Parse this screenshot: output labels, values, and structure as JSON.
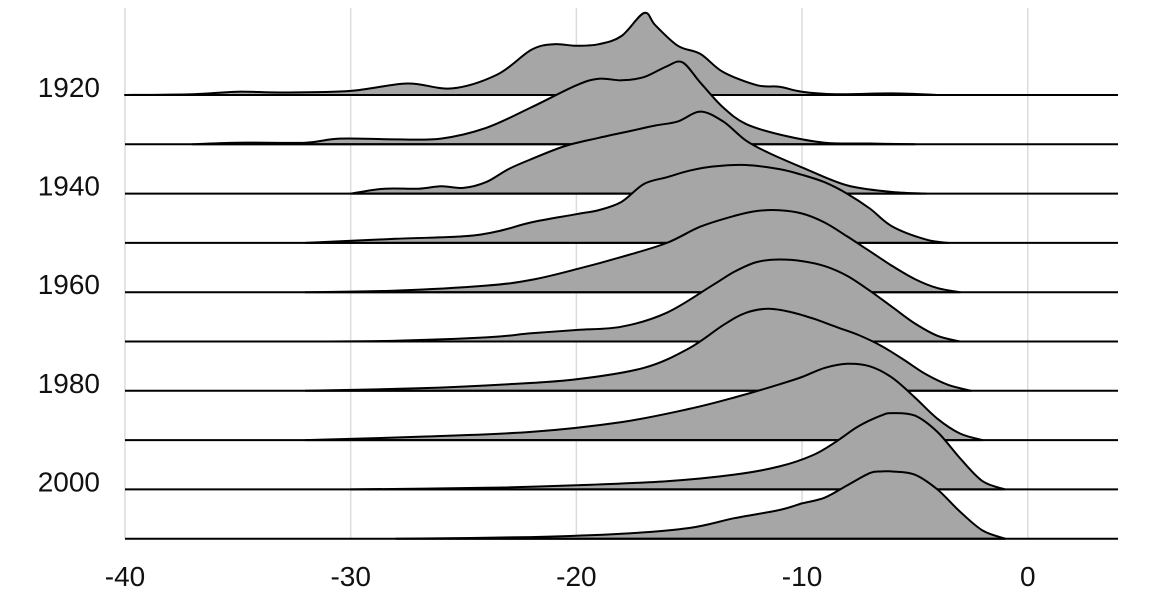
{
  "chart_data": {
    "type": "ridgeline",
    "title": "",
    "xlabel": "",
    "ylabel": "",
    "xlim": [
      -40,
      4
    ],
    "grid": true,
    "legend": "none",
    "colors": {
      "fill": "#a6a6a6",
      "stroke": "#000000",
      "grid": "#dcdcdc"
    },
    "x_ticks": [
      -40,
      -30,
      -20,
      -10,
      0
    ],
    "x_tick_labels": [
      "-40",
      "-30",
      "-20",
      "-10",
      "0"
    ],
    "y_tick_labels": [
      {
        "label": "1920",
        "ridge": 0
      },
      {
        "label": "1940",
        "ridge": 2
      },
      {
        "label": "1960",
        "ridge": 4
      },
      {
        "label": "1980",
        "ridge": 6
      },
      {
        "label": "2000",
        "ridge": 8
      }
    ],
    "series": [
      {
        "x": [
          -40,
          -37,
          -35,
          -33,
          -30,
          -27.5,
          -25.5,
          -23.5,
          -22,
          -21,
          -20,
          -19,
          -18,
          -17,
          -16.5,
          -15.5,
          -14.5,
          -13.5,
          -12,
          -11,
          -10,
          -8.5,
          -6,
          -4
        ],
        "density": [
          0,
          0.01,
          0.04,
          0.03,
          0.05,
          0.14,
          0.08,
          0.25,
          0.55,
          0.62,
          0.6,
          0.62,
          0.72,
          1.0,
          0.85,
          0.6,
          0.5,
          0.28,
          0.12,
          0.1,
          0.04,
          0.01,
          0.02,
          0
        ]
      },
      {
        "x": [
          -37,
          -35,
          -32,
          -30.5,
          -28,
          -26,
          -24,
          -22,
          -20,
          -19,
          -18,
          -17,
          -16,
          -15.3,
          -14.5,
          -13.5,
          -12.5,
          -11,
          -9,
          -7,
          -5
        ],
        "density": [
          0,
          0.02,
          0.02,
          0.07,
          0.06,
          0.07,
          0.2,
          0.45,
          0.72,
          0.8,
          0.78,
          0.82,
          0.95,
          1.0,
          0.75,
          0.45,
          0.25,
          0.12,
          0.02,
          0.01,
          0
        ]
      },
      {
        "x": [
          -30,
          -28.5,
          -27,
          -26,
          -25,
          -24,
          -23,
          -22,
          -20.5,
          -19,
          -17.5,
          -16.5,
          -15.5,
          -14.5,
          -13.5,
          -12.5,
          -11.5,
          -10,
          -8,
          -6,
          -4.5
        ],
        "density": [
          0,
          0.06,
          0.06,
          0.09,
          0.07,
          0.14,
          0.3,
          0.42,
          0.58,
          0.68,
          0.77,
          0.83,
          0.88,
          1.0,
          0.88,
          0.65,
          0.5,
          0.32,
          0.1,
          0.02,
          0
        ]
      },
      {
        "x": [
          -32,
          -28,
          -25,
          -23.5,
          -22,
          -20,
          -19,
          -18,
          -17,
          -16,
          -15,
          -14,
          -12.5,
          -11,
          -10,
          -9,
          -8,
          -7,
          -6,
          -4.5,
          -3.5
        ],
        "density": [
          0,
          0.05,
          0.08,
          0.14,
          0.25,
          0.35,
          0.4,
          0.5,
          0.72,
          0.8,
          0.88,
          0.93,
          0.95,
          0.9,
          0.83,
          0.74,
          0.6,
          0.42,
          0.2,
          0.04,
          0
        ]
      },
      {
        "x": [
          -32,
          -28,
          -24,
          -22,
          -20,
          -18,
          -16,
          -14.5,
          -13,
          -12,
          -11,
          -10,
          -9,
          -8,
          -7,
          -6,
          -5,
          -4,
          -3
        ],
        "density": [
          0,
          0.02,
          0.08,
          0.15,
          0.28,
          0.43,
          0.6,
          0.8,
          0.93,
          0.99,
          1.0,
          0.96,
          0.85,
          0.68,
          0.5,
          0.32,
          0.16,
          0.05,
          0
        ]
      },
      {
        "x": [
          -32,
          -28,
          -24,
          -22,
          -20,
          -18,
          -16,
          -14,
          -13,
          -12,
          -11,
          -10,
          -9,
          -8,
          -7,
          -6,
          -5,
          -4,
          -3
        ],
        "density": [
          0,
          0.01,
          0.05,
          0.1,
          0.14,
          0.18,
          0.35,
          0.68,
          0.85,
          0.97,
          1.0,
          0.98,
          0.92,
          0.8,
          0.62,
          0.42,
          0.22,
          0.07,
          0
        ]
      },
      {
        "x": [
          -32,
          -27,
          -23,
          -20,
          -17,
          -15,
          -13.5,
          -12.5,
          -11.5,
          -10.5,
          -9.5,
          -8.5,
          -7.5,
          -6.5,
          -5.5,
          -4.5,
          -3.5,
          -2.5
        ],
        "density": [
          0,
          0.03,
          0.08,
          0.14,
          0.28,
          0.52,
          0.8,
          0.95,
          1.0,
          0.96,
          0.88,
          0.78,
          0.68,
          0.55,
          0.38,
          0.2,
          0.07,
          0
        ]
      },
      {
        "x": [
          -32,
          -27,
          -22,
          -18,
          -15,
          -13,
          -11,
          -10,
          -9,
          -8,
          -7,
          -6,
          -5,
          -4,
          -3,
          -2
        ],
        "density": [
          0,
          0.04,
          0.1,
          0.22,
          0.38,
          0.52,
          0.68,
          0.77,
          0.88,
          0.93,
          0.9,
          0.76,
          0.52,
          0.26,
          0.08,
          0
        ]
      },
      {
        "x": [
          -30,
          -24,
          -20,
          -16,
          -13,
          -11,
          -9.5,
          -8.5,
          -7.5,
          -6.5,
          -6,
          -5,
          -4,
          -3,
          -2,
          -1
        ],
        "density": [
          0,
          0.02,
          0.05,
          0.1,
          0.18,
          0.28,
          0.42,
          0.58,
          0.77,
          0.9,
          0.93,
          0.9,
          0.7,
          0.38,
          0.1,
          0
        ]
      },
      {
        "x": [
          -28,
          -22,
          -18,
          -15,
          -13,
          -11,
          -10,
          -9,
          -8,
          -7,
          -6.5,
          -6,
          -5,
          -4,
          -3,
          -2,
          -1
        ],
        "density": [
          0,
          0.02,
          0.06,
          0.13,
          0.25,
          0.35,
          0.43,
          0.5,
          0.65,
          0.8,
          0.82,
          0.82,
          0.78,
          0.6,
          0.33,
          0.1,
          0
        ]
      }
    ]
  }
}
